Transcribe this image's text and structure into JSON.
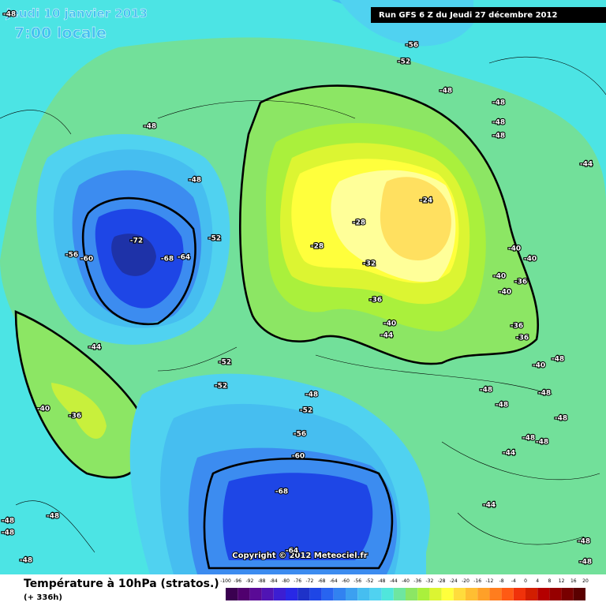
{
  "header": {
    "date": "Jeudi 10 janvier 2013",
    "time": "7:00 locale",
    "run": "Run GFS 6 Z du Jeudi 27 décembre 2012"
  },
  "copyright": "Copyright © 2012 Meteociel.fr",
  "footer": {
    "title": "Température à 10hPa (stratos.)",
    "lead": "(+ 336h)"
  },
  "map": {
    "contour_labels": [
      -48,
      -56,
      -52,
      -48,
      -48,
      -48,
      -48,
      -44,
      -48,
      -48,
      -72,
      -68,
      -64,
      -60,
      -56,
      -52,
      -24,
      -28,
      -28,
      -32,
      -40,
      -40,
      -40,
      -36,
      -40,
      -36,
      -40,
      -44,
      -36,
      -36,
      -40,
      -48,
      -44,
      -52,
      -52,
      -40,
      -36,
      -48,
      -52,
      -56,
      -60,
      -68,
      -64,
      -48,
      -48,
      -48,
      -48,
      -48,
      -48,
      -44,
      -44,
      -48,
      -48,
      -48,
      -48,
      -48,
      -48
    ]
  },
  "legend": {
    "ticks": [
      -100,
      -96,
      -92,
      -88,
      -84,
      -80,
      -76,
      -72,
      -68,
      -64,
      -60,
      -56,
      -52,
      -48,
      -44,
      -40,
      -36,
      -32,
      -28,
      -24,
      -20,
      -16,
      -12,
      -8,
      -4,
      0,
      4,
      8,
      12,
      16,
      20
    ],
    "colors": [
      "#3a0050",
      "#50006e",
      "#5a0a96",
      "#5014b4",
      "#3c1ed2",
      "#2828e6",
      "#1e32c8",
      "#1e46e6",
      "#2864f0",
      "#3282f0",
      "#3ca0f0",
      "#46bef0",
      "#50d2f0",
      "#50e6dc",
      "#6ee6a0",
      "#8ce664",
      "#aaf03c",
      "#dcf532",
      "#ffff3c",
      "#ffdc3c",
      "#ffbe32",
      "#ffa028",
      "#ff7d1e",
      "#ff5a14",
      "#f0320a",
      "#d21e00",
      "#b40000",
      "#960000",
      "#780000",
      "#5a0000"
    ]
  }
}
